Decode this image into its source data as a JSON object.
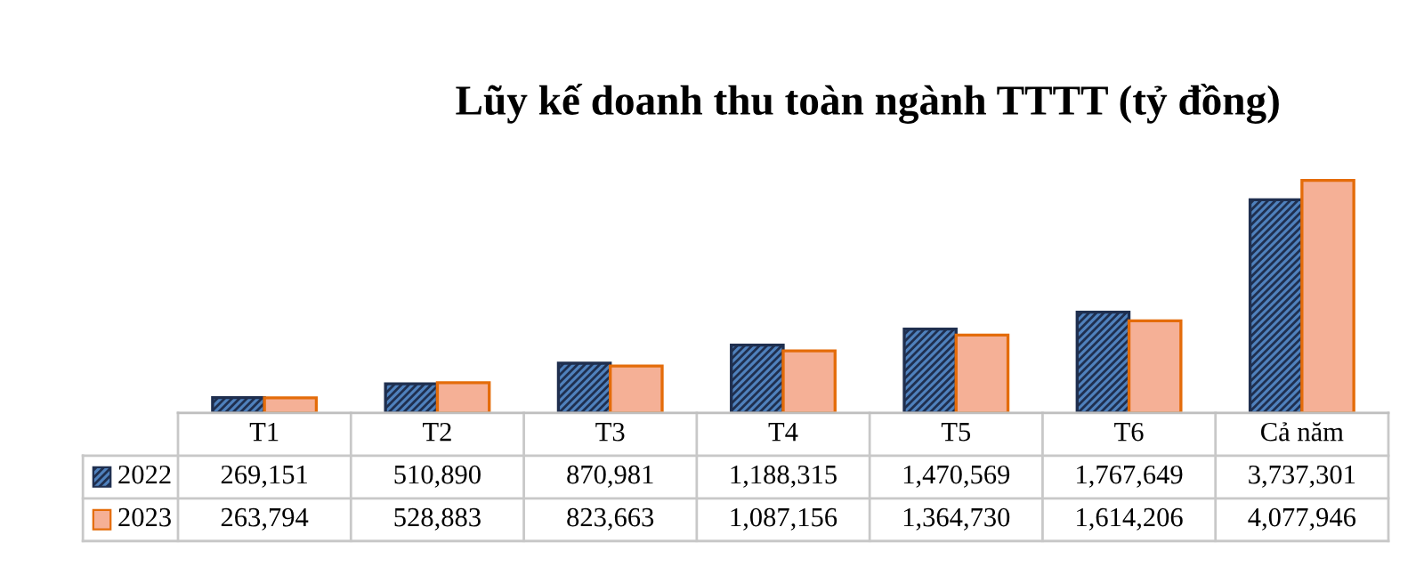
{
  "chart_data": {
    "type": "bar",
    "title": "Lũy kế doanh thu toàn ngành TTTT (tỷ đồng)",
    "categories": [
      "T1",
      "T2",
      "T3",
      "T4",
      "T5",
      "T6",
      "Cả năm"
    ],
    "series": [
      {
        "name": "2022",
        "color": "#1f2f4f",
        "values": [
          269151,
          510890,
          870981,
          1188315,
          1470569,
          1767649,
          3737301
        ],
        "value_labels": [
          "269,151",
          "510,890",
          "870,981",
          "1,188,315",
          "1,470,569",
          "1,767,649",
          "3,737,301"
        ]
      },
      {
        "name": "2023",
        "color": "#f5b096",
        "values": [
          263794,
          528883,
          823663,
          1087156,
          1364730,
          1614206,
          4077946
        ],
        "value_labels": [
          "263,794",
          "528,883",
          "823,663",
          "1,087,156",
          "1,364,730",
          "1,614,206",
          "4,077,946"
        ]
      }
    ],
    "legend": "bottom left"
  }
}
